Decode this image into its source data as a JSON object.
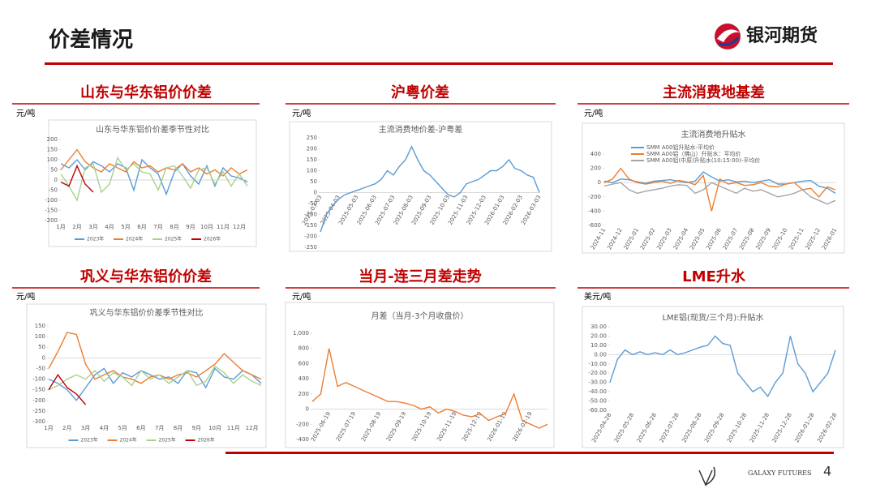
{
  "header": {
    "title": "价差情况",
    "brand": "银河期货"
  },
  "footer": {
    "brand": "GALAXY FUTURES",
    "page": "4"
  },
  "chart_data": [
    {
      "type": "line",
      "heading": "山东与华东铝价价差",
      "unit": "元/吨",
      "title": "山东与华东铝价价差季节性对比",
      "categories": [
        "1月",
        null,
        "2月",
        null,
        "3月",
        null,
        "4月",
        null,
        "5月",
        null,
        "6月",
        null,
        "7月",
        null,
        "8月",
        null,
        "9月",
        null,
        "10月",
        null,
        "11月",
        null,
        "12月",
        null
      ],
      "series": [
        {
          "name": "2023年",
          "color": "#5b9bd5",
          "values": [
            80,
            60,
            100,
            50,
            90,
            70,
            40,
            80,
            60,
            -50,
            100,
            60,
            30,
            -70,
            40,
            80,
            20,
            -20,
            70,
            -30,
            60,
            20,
            10,
            -10
          ]
        },
        {
          "name": "2024年",
          "color": "#ed7d31",
          "values": [
            50,
            100,
            150,
            90,
            60,
            40,
            80,
            60,
            40,
            90,
            60,
            70,
            40,
            60,
            50,
            80,
            40,
            60,
            30,
            50,
            20,
            60,
            30,
            50
          ]
        },
        {
          "name": "2025年",
          "color": "#a9d18e",
          "values": [
            30,
            -30,
            -100,
            60,
            80,
            -60,
            -20,
            110,
            50,
            80,
            40,
            30,
            -50,
            60,
            70,
            20,
            -40,
            50,
            60,
            -20,
            40,
            -30,
            30,
            -30
          ]
        },
        {
          "name": "2026年",
          "color": "#c00000",
          "values": [
            -10,
            -30,
            70,
            -20,
            -60,
            null,
            null,
            null,
            null,
            null,
            null,
            null,
            null,
            null,
            null,
            null,
            null,
            null,
            null,
            null,
            null,
            null,
            null,
            null
          ]
        }
      ],
      "ylim": [
        -200,
        200
      ],
      "yticks": [
        -200,
        -150,
        -100,
        -50,
        0,
        50,
        100,
        150,
        200
      ],
      "legend": "bottom"
    },
    {
      "type": "line",
      "heading": "沪粤价差",
      "unit": "元/吨",
      "title": "主流消费地价差-沪粤差",
      "categories": [
        "2025-03-03",
        null,
        null,
        "2025-04-03",
        null,
        null,
        "2025-05-03",
        null,
        null,
        "2025-06-03",
        null,
        null,
        "2025-07-03",
        null,
        null,
        "2025-08-03",
        null,
        null,
        "2025-09-03",
        null,
        null,
        "2025-10-03",
        null,
        null,
        "2025-11-03",
        null,
        null,
        "2025-12-03",
        null,
        null,
        "2026-01-03",
        null,
        null,
        "2026-02-03",
        null,
        null,
        "2026-03-03"
      ],
      "values": [
        -180,
        -100,
        -60,
        -30,
        -10,
        0,
        10,
        20,
        30,
        40,
        60,
        100,
        80,
        120,
        150,
        210,
        150,
        100,
        80,
        50,
        20,
        -10,
        -20,
        0,
        40,
        50,
        60,
        80,
        100,
        100,
        120,
        150,
        110,
        100,
        80,
        70,
        0
      ],
      "color": "#5b9bd5",
      "ylim": [
        -250,
        250
      ],
      "yticks": [
        -250,
        -200,
        -150,
        -100,
        -50,
        0,
        50,
        100,
        150,
        200,
        250
      ]
    },
    {
      "type": "line",
      "heading": "主流消费地基差",
      "unit": "元/吨",
      "title": "主流消费地升贴水",
      "categories": [
        "2024-11",
        null,
        "2024-12",
        null,
        "2025-01",
        null,
        "2025-02",
        null,
        "2025-03",
        null,
        "2025-04",
        null,
        "2025-05",
        null,
        "2025-06",
        null,
        "2025-07",
        null,
        "2025-08",
        null,
        "2025-09",
        null,
        "2025-10",
        null,
        "2025-11",
        null,
        "2025-12",
        null,
        "2026-01"
      ],
      "series": [
        {
          "name": "SMM A00铝升贴水-平均价",
          "color": "#5b9bd5",
          "values": [
            20,
            0,
            50,
            40,
            10,
            -10,
            20,
            30,
            40,
            20,
            0,
            20,
            150,
            80,
            20,
            40,
            10,
            20,
            0,
            20,
            40,
            -20,
            -20,
            0,
            20,
            30,
            -50,
            -80,
            -150
          ]
        },
        {
          "name": "SMM A00铝（佛山）升贴水：平均价",
          "color": "#ed7d31",
          "values": [
            0,
            50,
            200,
            50,
            0,
            -20,
            0,
            20,
            -10,
            30,
            10,
            -30,
            100,
            -400,
            50,
            -20,
            0,
            -40,
            -30,
            0,
            -50,
            -60,
            -20,
            0,
            -100,
            -80,
            -200,
            -60,
            -100
          ]
        },
        {
          "name": "SMM A00铝(中原)升贴水(10:15:00)-平均价",
          "color": "#a5a5a5",
          "values": [
            -50,
            -20,
            0,
            -100,
            -150,
            -120,
            -100,
            -80,
            -50,
            -30,
            -40,
            -150,
            -100,
            0,
            -50,
            -100,
            -150,
            -80,
            -120,
            -100,
            -150,
            -200,
            -180,
            -150,
            -100,
            -200,
            -250,
            -300,
            -250
          ]
        }
      ],
      "ylim": [
        -600,
        400
      ],
      "yticks": [
        -600,
        -400,
        -200,
        0,
        200,
        400
      ],
      "legend": "top"
    },
    {
      "type": "line",
      "heading": "巩义与华东铝价价差",
      "unit": "元/吨",
      "title": "巩义与华东铝价价差季节性对比",
      "categories": [
        "1月",
        null,
        "2月",
        null,
        "3月",
        null,
        "4月",
        null,
        "5月",
        null,
        "6月",
        null,
        "7月",
        null,
        "8月",
        null,
        "9月",
        null,
        "10月",
        null,
        "11月",
        null,
        "12月",
        null
      ],
      "series": [
        {
          "name": "2023年",
          "color": "#5b9bd5",
          "values": [
            -100,
            -120,
            -150,
            -200,
            -140,
            -80,
            -50,
            -120,
            -70,
            -90,
            -60,
            -80,
            -100,
            -90,
            -120,
            -60,
            -70,
            -140,
            -50,
            -90,
            -100,
            -60,
            -80,
            -120
          ]
        },
        {
          "name": "2024年",
          "color": "#ed7d31",
          "values": [
            -50,
            30,
            120,
            110,
            -30,
            -100,
            -80,
            -60,
            -90,
            -100,
            -120,
            -90,
            -80,
            -100,
            -80,
            -70,
            -90,
            -60,
            -30,
            20,
            -20,
            -60,
            -80,
            -100
          ]
        },
        {
          "name": "2025年",
          "color": "#a9d18e",
          "values": [
            -150,
            -130,
            -100,
            -80,
            -100,
            -60,
            -110,
            -70,
            -90,
            -130,
            -60,
            -100,
            -80,
            -120,
            -90,
            -60,
            -130,
            -110,
            -40,
            -70,
            -120,
            -80,
            -110,
            -130
          ]
        },
        {
          "name": "2026年",
          "color": "#c00000",
          "values": [
            -150,
            -80,
            -140,
            -170,
            -220,
            null,
            null,
            null,
            null,
            null,
            null,
            null,
            null,
            null,
            null,
            null,
            null,
            null,
            null,
            null,
            null,
            null,
            null,
            null
          ]
        }
      ],
      "ylim": [
        -300,
        150
      ],
      "yticks": [
        -300,
        -250,
        -200,
        -150,
        -100,
        -50,
        0,
        50,
        100,
        150
      ],
      "legend": "bottom"
    },
    {
      "type": "line",
      "heading": "当月-连三月差走势",
      "unit": "元/吨",
      "title": "月差（当月-3个月收盘价）",
      "categories": [
        null,
        null,
        "2025-06-19",
        null,
        null,
        "2025-07-19",
        null,
        null,
        "2025-08-19",
        null,
        null,
        "2025-09-19",
        null,
        null,
        "2025-10-19",
        null,
        null,
        "2025-11-19",
        null,
        null,
        "2025-12-19",
        null,
        null,
        "2026-01-19",
        null,
        null,
        "2026-02-19",
        null,
        null
      ],
      "values": [
        100,
        200,
        800,
        300,
        350,
        300,
        250,
        200,
        150,
        100,
        100,
        80,
        50,
        0,
        30,
        -50,
        0,
        -30,
        -80,
        -100,
        -60,
        -150,
        -100,
        -60,
        200,
        -150,
        -200,
        -250,
        -200
      ],
      "color": "#ed7d31",
      "ylim": [
        -400,
        1000
      ],
      "yticks": [
        -400,
        -200,
        0,
        200,
        400,
        600,
        800,
        {
          "value": 1000,
          "label": "1,000"
        }
      ]
    },
    {
      "type": "line",
      "heading": "LME升水",
      "unit": "美元/吨",
      "title": "LME铝(现货/三个月):升贴水",
      "categories": [
        "2025-04-28",
        null,
        null,
        "2025-05-28",
        null,
        null,
        "2025-06-28",
        null,
        null,
        "2025-07-28",
        null,
        null,
        "2025-08-28",
        null,
        null,
        "2025-09-28",
        null,
        null,
        "2025-10-28",
        null,
        null,
        "2025-11-28",
        null,
        null,
        "2025-12-28",
        null,
        null,
        "2026-01-28",
        null,
        null,
        "2026-02-28"
      ],
      "values": [
        -30,
        -5,
        5,
        0,
        3,
        0,
        2,
        0,
        5,
        0,
        2,
        5,
        8,
        10,
        20,
        12,
        10,
        -20,
        -30,
        -40,
        -35,
        -45,
        -30,
        -20,
        20,
        -10,
        -20,
        -40,
        -30,
        -20,
        5
      ],
      "color": "#5b9bd5",
      "ylim": [
        -60,
        30
      ],
      "yticks": [
        {
          "value": -60,
          "label": "-60.00"
        },
        {
          "value": -50,
          "label": "-50.00"
        },
        {
          "value": -40,
          "label": "-40.00"
        },
        {
          "value": -30,
          "label": "-30.00"
        },
        {
          "value": -20,
          "label": "-20.00"
        },
        {
          "value": -10,
          "label": "-10.00"
        },
        {
          "value": 0,
          "label": "0.00"
        },
        {
          "value": 10,
          "label": "10.00"
        },
        {
          "value": 20,
          "label": "20.00"
        },
        {
          "value": 30,
          "label": "30.00"
        }
      ]
    }
  ]
}
